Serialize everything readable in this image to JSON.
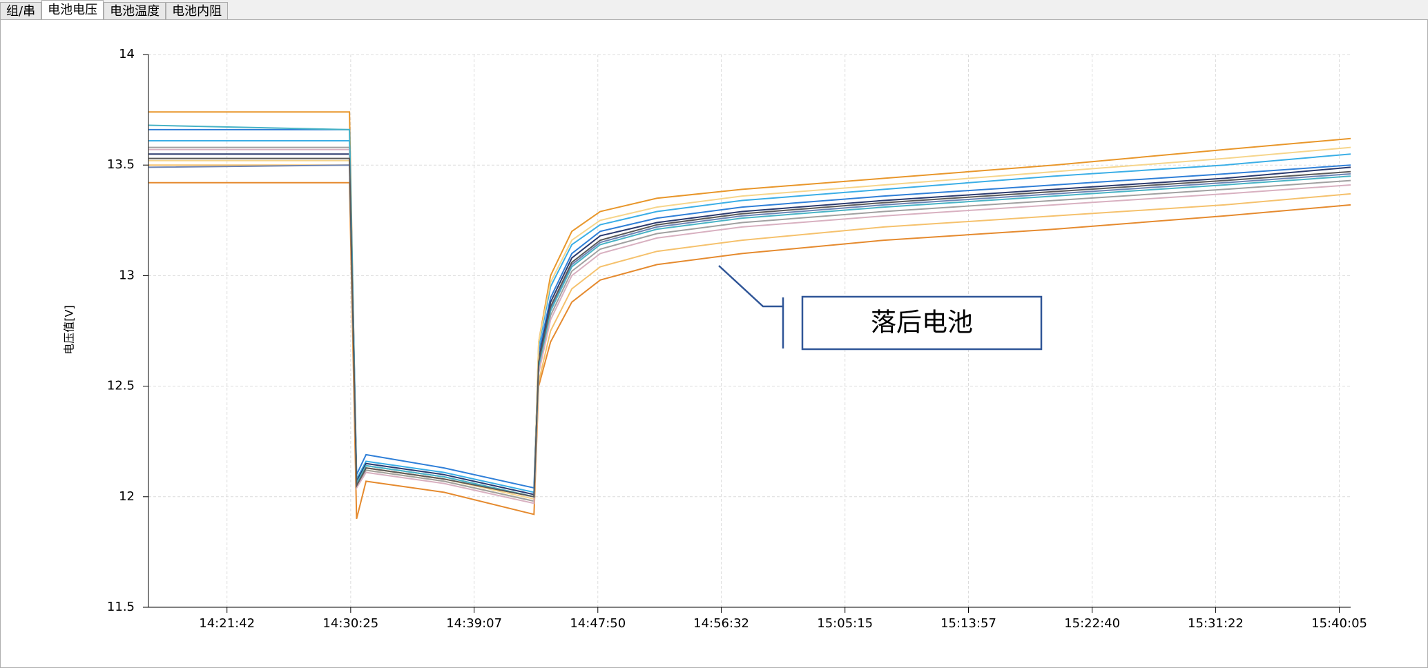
{
  "tabs": [
    "组/串",
    "电池电压",
    "电池温度",
    "电池内阻"
  ],
  "chart_data": {
    "type": "line",
    "y_label": "电压值[V]",
    "annotation": "落后电池",
    "x": [
      "14:16:10",
      "14:30:20",
      "14:30:50",
      "14:31:30",
      "14:37:00",
      "14:43:20",
      "14:43:40",
      "14:44:30",
      "14:46:00",
      "14:48:00",
      "14:52:00",
      "14:58:00",
      "15:08:00",
      "15:20:00",
      "15:32:00",
      "15:40:53"
    ],
    "xlim": [
      "14:16:10",
      "15:40:53"
    ],
    "xticks": [
      "14:21:42",
      "14:30:25",
      "14:39:07",
      "14:47:50",
      "14:56:32",
      "15:05:15",
      "15:13:57",
      "15:22:40",
      "15:31:22",
      "15:40:05"
    ],
    "ylim": [
      11.5,
      14
    ],
    "yticks": [
      11.5,
      12,
      12.5,
      13,
      13.5,
      14
    ],
    "grid": true,
    "series": [
      {
        "color": "#e8962a",
        "values": [
          13.74,
          13.74,
          12.05,
          12.13,
          12.08,
          12.0,
          12.7,
          13.0,
          13.2,
          13.29,
          13.35,
          13.39,
          13.44,
          13.5,
          13.57,
          13.62
        ]
      },
      {
        "color": "#e58a2e",
        "values": [
          13.42,
          13.42,
          11.9,
          12.07,
          12.02,
          11.92,
          12.5,
          12.7,
          12.88,
          12.98,
          13.05,
          13.1,
          13.16,
          13.21,
          13.27,
          13.32
        ]
      },
      {
        "color": "#2f7fd8",
        "values": [
          13.66,
          13.66,
          12.1,
          12.19,
          12.13,
          12.04,
          12.65,
          12.9,
          13.1,
          13.2,
          13.26,
          13.31,
          13.36,
          13.41,
          13.46,
          13.5
        ]
      },
      {
        "color": "#3aaee6",
        "values": [
          13.61,
          13.61,
          12.08,
          12.16,
          12.11,
          12.02,
          12.68,
          12.95,
          13.14,
          13.23,
          13.29,
          13.34,
          13.39,
          13.45,
          13.5,
          13.55
        ]
      },
      {
        "color": "#2b3a6e",
        "values": [
          13.55,
          13.55,
          12.07,
          12.15,
          12.1,
          12.01,
          12.62,
          12.88,
          13.08,
          13.18,
          13.24,
          13.29,
          13.34,
          13.39,
          13.44,
          13.49
        ]
      },
      {
        "color": "#f6d58b",
        "values": [
          13.52,
          13.52,
          12.05,
          12.13,
          12.08,
          11.99,
          12.7,
          12.97,
          13.16,
          13.25,
          13.31,
          13.36,
          13.41,
          13.47,
          13.53,
          13.58
        ]
      },
      {
        "color": "#f5c16c",
        "values": [
          13.5,
          13.5,
          12.04,
          12.12,
          12.07,
          11.98,
          12.52,
          12.75,
          12.94,
          13.04,
          13.11,
          13.16,
          13.22,
          13.27,
          13.32,
          13.37
        ]
      },
      {
        "color": "#a0a0a0",
        "values": [
          13.58,
          13.58,
          12.05,
          12.12,
          12.07,
          11.98,
          12.58,
          12.82,
          13.02,
          13.12,
          13.19,
          13.24,
          13.29,
          13.34,
          13.39,
          13.43
        ]
      },
      {
        "color": "#d8b0c0",
        "values": [
          13.57,
          13.57,
          12.04,
          12.11,
          12.06,
          11.97,
          12.56,
          12.8,
          13.0,
          13.1,
          13.17,
          13.22,
          13.27,
          13.32,
          13.37,
          13.41
        ]
      },
      {
        "color": "#6d83b3",
        "values": [
          13.49,
          13.5,
          12.06,
          12.14,
          12.09,
          12.0,
          12.6,
          12.85,
          13.05,
          13.15,
          13.22,
          13.27,
          13.32,
          13.37,
          13.42,
          13.46
        ]
      },
      {
        "color": "#47b3c5",
        "values": [
          13.68,
          13.66,
          12.06,
          12.14,
          12.09,
          12.0,
          12.59,
          12.84,
          13.04,
          13.14,
          13.21,
          13.26,
          13.31,
          13.36,
          13.41,
          13.45
        ]
      },
      {
        "color": "#5a5a5a",
        "values": [
          13.53,
          13.53,
          12.05,
          12.13,
          12.08,
          12.0,
          12.61,
          12.86,
          13.06,
          13.16,
          13.23,
          13.28,
          13.33,
          13.38,
          13.43,
          13.47
        ]
      }
    ]
  }
}
